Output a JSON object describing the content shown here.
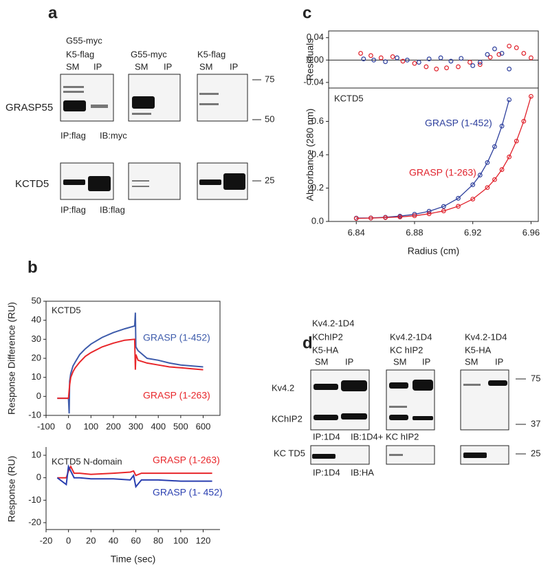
{
  "panel_labels": [
    "a",
    "b",
    "c",
    "d"
  ],
  "blot_a": {
    "lane_groups": [
      {
        "header": [
          "G55-myc",
          "K5-flag"
        ],
        "lanes": [
          "SM",
          "IP"
        ]
      },
      {
        "header": [
          "G55-myc"
        ],
        "lanes": [
          "SM",
          "IP"
        ]
      },
      {
        "header": [
          "K5-flag"
        ],
        "lanes": [
          "SM",
          "IP"
        ]
      }
    ],
    "rows": [
      "GRASP55",
      "KCTD5"
    ],
    "size_markers": [
      "75",
      "50",
      "25"
    ],
    "notes": [
      [
        "IP:flag",
        "IB:myc"
      ],
      [
        "IP:flag",
        "IB:flag"
      ]
    ]
  },
  "blot_d": {
    "lane_groups": [
      {
        "header": [
          "Kv4.2-1D4",
          "KChIP2",
          "K5-HA"
        ],
        "lanes": [
          "SM",
          "IP"
        ]
      },
      {
        "header": [
          "Kv4.2-1D4",
          "KC hIP2"
        ],
        "lanes": [
          "SM",
          "IP"
        ]
      },
      {
        "header": [
          "Kv4.2-1D4",
          "K5-HA"
        ],
        "lanes": [
          "SM",
          "IP"
        ]
      }
    ],
    "rows": [
      "Kv4.2",
      "KChIP2",
      "KC TD5"
    ],
    "size_markers": [
      "75",
      "37",
      "25"
    ],
    "notes": [
      [
        "IP:1D4",
        "IB:1D4+ KC hIP2"
      ],
      [
        "IP:1D4",
        "IB:HA"
      ]
    ]
  },
  "chart_data": [
    {
      "type": "scatter",
      "y_label": "Residuals",
      "xlim": [
        6.821,
        6.965
      ],
      "ylim": [
        -0.05,
        0.052
      ],
      "yticks": [
        0.04,
        {
          "value": 0,
          "label": "0.00"
        },
        -0.04
      ],
      "zero_line": true,
      "series": [
        {
          "color": "#e0202a",
          "x": [
            6.843,
            6.85,
            6.857,
            6.865,
            6.872,
            6.88,
            6.888,
            6.895,
            6.902,
            6.91,
            6.918,
            6.925,
            6.932,
            6.938,
            6.945,
            6.95,
            6.955,
            6.96
          ],
          "values": [
            0.012,
            0.008,
            0.004,
            0.006,
            -0.002,
            -0.006,
            -0.012,
            -0.016,
            -0.014,
            -0.012,
            -0.004,
            -0.008,
            0.005,
            0.01,
            0.025,
            0.022,
            0.012,
            0.004
          ]
        },
        {
          "color": "#2c3e9c",
          "x": [
            6.845,
            6.852,
            6.86,
            6.868,
            6.875,
            6.883,
            6.89,
            6.898,
            6.905,
            6.912,
            6.92,
            6.925,
            6.93,
            6.935,
            6.94,
            6.945
          ],
          "values": [
            0.002,
            0,
            -0.003,
            0.004,
            0,
            -0.004,
            0.002,
            0.004,
            -0.002,
            0.003,
            -0.01,
            -0.004,
            0.01,
            0.02,
            0.012,
            -0.016
          ]
        }
      ]
    },
    {
      "type": "scatter",
      "annotation": "KCTD5",
      "y_label": "Absorbance (280 nm)",
      "x_label": "Radius (cm)",
      "xlim": [
        6.821,
        6.965
      ],
      "ylim": [
        0,
        0.8
      ],
      "xticks": [
        6.84,
        6.88,
        6.92,
        6.96
      ],
      "yticks": [
        {
          "value": 0,
          "label": "0.0"
        },
        0.2,
        0.4,
        0.6
      ],
      "fit_line": true,
      "series": [
        {
          "name": "GRASP (1-452)",
          "color": "#2c3e9c",
          "x": [
            6.84,
            6.85,
            6.86,
            6.87,
            6.88,
            6.89,
            6.9,
            6.91,
            6.92,
            6.925,
            6.93,
            6.935,
            6.94,
            6.945
          ],
          "values": [
            0.02,
            0.021,
            0.025,
            0.032,
            0.043,
            0.061,
            0.09,
            0.139,
            0.22,
            0.278,
            0.353,
            0.449,
            0.572,
            0.73
          ]
        },
        {
          "name": "GRASP (1-263)",
          "color": "#e0202a",
          "x": [
            6.84,
            6.85,
            6.86,
            6.87,
            6.88,
            6.89,
            6.9,
            6.91,
            6.92,
            6.93,
            6.935,
            6.94,
            6.945,
            6.95,
            6.955,
            6.96
          ],
          "values": [
            0.018,
            0.02,
            0.023,
            0.027,
            0.034,
            0.046,
            0.063,
            0.091,
            0.134,
            0.203,
            0.251,
            0.311,
            0.387,
            0.482,
            0.601,
            0.75
          ]
        }
      ]
    },
    {
      "type": "line",
      "annotation": "KCTD5",
      "y_label": "Response Difference (RU)",
      "xlim": [
        -100,
        675
      ],
      "ylim": [
        -10,
        50
      ],
      "xticks": [
        -100,
        0,
        100,
        200,
        300,
        400,
        500,
        600
      ],
      "yticks": [
        -10,
        0,
        10,
        20,
        30,
        40,
        50
      ],
      "series": [
        {
          "name": "GRASP (1-452)",
          "color": "#3d5bab",
          "x": [
            -50,
            -10,
            0,
            3,
            5,
            10,
            20,
            30,
            50,
            75,
            100,
            150,
            200,
            250,
            295,
            298,
            300,
            310,
            350,
            400,
            450,
            500,
            550,
            600
          ],
          "values": [
            -1,
            -1,
            -1,
            -9,
            8,
            12,
            16,
            18,
            22,
            25,
            27.5,
            31,
            33.5,
            35.5,
            37,
            44,
            26,
            24,
            20,
            19,
            17.5,
            16.5,
            16,
            15.5
          ]
        },
        {
          "name": "GRASP (1-263)",
          "color": "#e8262a",
          "x": [
            -50,
            -10,
            0,
            5,
            10,
            20,
            30,
            50,
            75,
            100,
            150,
            200,
            250,
            295,
            298,
            300,
            310,
            350,
            400,
            450,
            500,
            550,
            600
          ],
          "values": [
            -1,
            -1,
            -1,
            6,
            10,
            13,
            15,
            18,
            21,
            23,
            26,
            28,
            29.5,
            30,
            14,
            22,
            19,
            17.5,
            16.5,
            15.5,
            15,
            14.5,
            14
          ]
        }
      ]
    },
    {
      "type": "line",
      "annotation": "KCTD5 N-domain",
      "y_label": "Response (RU)",
      "x_label": "Time (sec)",
      "xlim": [
        -20,
        135
      ],
      "ylim": [
        -20,
        10
      ],
      "xticks": [
        -20,
        0,
        20,
        40,
        60,
        80,
        100,
        120
      ],
      "yticks": [
        -20,
        -10,
        0,
        10
      ],
      "series": [
        {
          "name": "GRASP (1-263)",
          "color": "#e8262a",
          "x": [
            -10,
            -2,
            0,
            2,
            5,
            10,
            20,
            40,
            55,
            58,
            60,
            65,
            80,
            100,
            120,
            128
          ],
          "values": [
            0,
            0,
            3,
            5,
            2,
            2,
            1.5,
            2,
            2.5,
            3,
            1,
            2,
            2,
            2,
            2,
            2
          ]
        },
        {
          "name": "GRASP (1- 452)",
          "color": "#2a3fb0",
          "x": [
            -10,
            -2,
            0,
            2,
            5,
            10,
            20,
            40,
            55,
            58,
            60,
            65,
            80,
            100,
            120,
            128
          ],
          "values": [
            0,
            -3,
            5,
            3,
            0,
            0,
            -0.5,
            -0.5,
            -1,
            1,
            -4,
            -1,
            -1,
            -1.5,
            -1.5,
            -1.5
          ]
        }
      ]
    }
  ]
}
